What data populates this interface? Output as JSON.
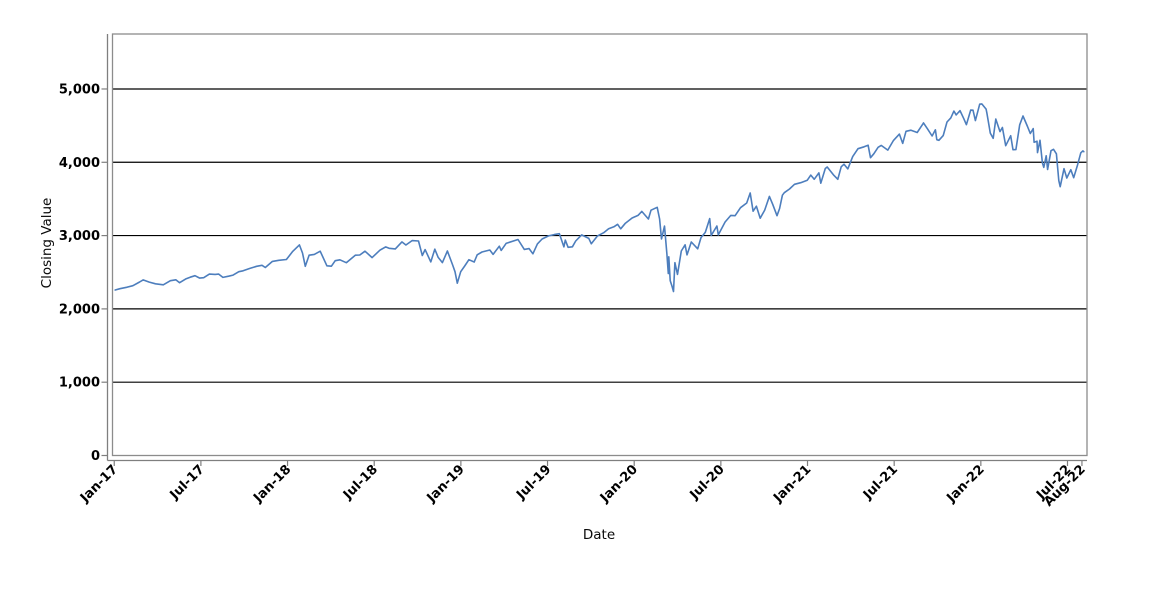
{
  "chart_data": {
    "type": "line",
    "title": "",
    "xlabel": "Date",
    "ylabel": "Closing Value",
    "grid": "horizontal-black-major",
    "legend": "none",
    "line_color": "#4d7ebd",
    "plot_border_color": "#8c8c8c",
    "axis_line_color": "#7f7f7f",
    "gridline_color": "#000000",
    "background_color": "#ffffff",
    "ylim": [
      0,
      5750
    ],
    "xlim_months": [
      -0.12,
      67.35
    ],
    "y_ticks": [
      {
        "label": "0",
        "value": 0
      },
      {
        "label": "1,000",
        "value": 1000
      },
      {
        "label": "2,000",
        "value": 2000
      },
      {
        "label": "3,000",
        "value": 3000
      },
      {
        "label": "4,000",
        "value": 4000
      },
      {
        "label": "5,000",
        "value": 5000
      }
    ],
    "x_ticks": [
      {
        "label": "Jan-17",
        "month": 0
      },
      {
        "label": "Jul-17",
        "month": 6
      },
      {
        "label": "Jan-18",
        "month": 12
      },
      {
        "label": "Jul-18",
        "month": 18
      },
      {
        "label": "Jan-19",
        "month": 24
      },
      {
        "label": "Jul-19",
        "month": 30
      },
      {
        "label": "Jan-20",
        "month": 36
      },
      {
        "label": "Jul-20",
        "month": 42
      },
      {
        "label": "Jan-21",
        "month": 48
      },
      {
        "label": "Jul-21",
        "month": 54
      },
      {
        "label": "Jan-22",
        "month": 60
      },
      {
        "label": "Jul-22",
        "month": 66
      },
      {
        "label": "Aug-22",
        "month": 67
      }
    ],
    "series": [
      {
        "name": "Closing Value",
        "points": [
          [
            "2017-01-03",
            2258
          ],
          [
            "2017-01-13",
            2275
          ],
          [
            "2017-01-27",
            2295
          ],
          [
            "2017-02-10",
            2316
          ],
          [
            "2017-02-24",
            2367
          ],
          [
            "2017-03-01",
            2396
          ],
          [
            "2017-03-14",
            2365
          ],
          [
            "2017-03-27",
            2342
          ],
          [
            "2017-04-13",
            2329
          ],
          [
            "2017-04-28",
            2384
          ],
          [
            "2017-05-09",
            2397
          ],
          [
            "2017-05-17",
            2357
          ],
          [
            "2017-05-31",
            2412
          ],
          [
            "2017-06-09",
            2432
          ],
          [
            "2017-06-19",
            2453
          ],
          [
            "2017-06-29",
            2420
          ],
          [
            "2017-07-07",
            2425
          ],
          [
            "2017-07-19",
            2474
          ],
          [
            "2017-07-31",
            2470
          ],
          [
            "2017-08-08",
            2475
          ],
          [
            "2017-08-17",
            2430
          ],
          [
            "2017-08-29",
            2446
          ],
          [
            "2017-09-08",
            2461
          ],
          [
            "2017-09-20",
            2508
          ],
          [
            "2017-09-29",
            2519
          ],
          [
            "2017-10-13",
            2553
          ],
          [
            "2017-10-27",
            2581
          ],
          [
            "2017-11-08",
            2594
          ],
          [
            "2017-11-15",
            2565
          ],
          [
            "2017-11-30",
            2648
          ],
          [
            "2017-12-13",
            2663
          ],
          [
            "2017-12-29",
            2674
          ],
          [
            "2018-01-12",
            2786
          ],
          [
            "2018-01-26",
            2873
          ],
          [
            "2018-02-02",
            2762
          ],
          [
            "2018-02-08",
            2581
          ],
          [
            "2018-02-16",
            2732
          ],
          [
            "2018-02-27",
            2744
          ],
          [
            "2018-03-09",
            2787
          ],
          [
            "2018-03-23",
            2588
          ],
          [
            "2018-04-02",
            2582
          ],
          [
            "2018-04-10",
            2657
          ],
          [
            "2018-04-20",
            2670
          ],
          [
            "2018-05-03",
            2630
          ],
          [
            "2018-05-22",
            2733
          ],
          [
            "2018-06-01",
            2735
          ],
          [
            "2018-06-12",
            2787
          ],
          [
            "2018-06-27",
            2700
          ],
          [
            "2018-07-13",
            2801
          ],
          [
            "2018-07-25",
            2846
          ],
          [
            "2018-08-02",
            2827
          ],
          [
            "2018-08-15",
            2818
          ],
          [
            "2018-08-29",
            2914
          ],
          [
            "2018-09-07",
            2872
          ],
          [
            "2018-09-20",
            2931
          ],
          [
            "2018-10-03",
            2926
          ],
          [
            "2018-10-11",
            2728
          ],
          [
            "2018-10-17",
            2809
          ],
          [
            "2018-10-29",
            2641
          ],
          [
            "2018-11-07",
            2814
          ],
          [
            "2018-11-14",
            2702
          ],
          [
            "2018-11-23",
            2632
          ],
          [
            "2018-12-03",
            2790
          ],
          [
            "2018-12-14",
            2600
          ],
          [
            "2018-12-19",
            2507
          ],
          [
            "2018-12-24",
            2351
          ],
          [
            "2018-12-31",
            2507
          ],
          [
            "2019-01-09",
            2585
          ],
          [
            "2019-01-18",
            2671
          ],
          [
            "2019-01-29",
            2640
          ],
          [
            "2019-02-05",
            2738
          ],
          [
            "2019-02-15",
            2776
          ],
          [
            "2019-03-01",
            2804
          ],
          [
            "2019-03-08",
            2743
          ],
          [
            "2019-03-21",
            2855
          ],
          [
            "2019-03-25",
            2798
          ],
          [
            "2019-04-05",
            2893
          ],
          [
            "2019-04-30",
            2946
          ],
          [
            "2019-05-13",
            2812
          ],
          [
            "2019-05-23",
            2822
          ],
          [
            "2019-05-31",
            2752
          ],
          [
            "2019-06-10",
            2887
          ],
          [
            "2019-06-20",
            2954
          ],
          [
            "2019-07-03",
            2996
          ],
          [
            "2019-07-15",
            3014
          ],
          [
            "2019-07-26",
            3026
          ],
          [
            "2019-08-05",
            2845
          ],
          [
            "2019-08-08",
            2938
          ],
          [
            "2019-08-14",
            2840
          ],
          [
            "2019-08-23",
            2847
          ],
          [
            "2019-08-30",
            2926
          ],
          [
            "2019-09-12",
            3009
          ],
          [
            "2019-09-27",
            2962
          ],
          [
            "2019-10-02",
            2888
          ],
          [
            "2019-10-15",
            2996
          ],
          [
            "2019-10-28",
            3039
          ],
          [
            "2019-11-08",
            3093
          ],
          [
            "2019-11-19",
            3120
          ],
          [
            "2019-11-27",
            3154
          ],
          [
            "2019-12-03",
            3093
          ],
          [
            "2019-12-13",
            3169
          ],
          [
            "2019-12-27",
            3240
          ],
          [
            "2020-01-09",
            3275
          ],
          [
            "2020-01-17",
            3330
          ],
          [
            "2020-01-31",
            3226
          ],
          [
            "2020-02-06",
            3346
          ],
          [
            "2020-02-19",
            3386
          ],
          [
            "2020-02-24",
            3226
          ],
          [
            "2020-02-28",
            2954
          ],
          [
            "2020-03-04",
            3130
          ],
          [
            "2020-03-09",
            2747
          ],
          [
            "2020-03-12",
            2481
          ],
          [
            "2020-03-13",
            2711
          ],
          [
            "2020-03-16",
            2386
          ],
          [
            "2020-03-20",
            2305
          ],
          [
            "2020-03-23",
            2237
          ],
          [
            "2020-03-26",
            2630
          ],
          [
            "2020-04-01",
            2471
          ],
          [
            "2020-04-09",
            2790
          ],
          [
            "2020-04-17",
            2875
          ],
          [
            "2020-04-21",
            2737
          ],
          [
            "2020-04-30",
            2912
          ],
          [
            "2020-05-13",
            2820
          ],
          [
            "2020-05-20",
            2972
          ],
          [
            "2020-05-29",
            3044
          ],
          [
            "2020-06-08",
            3232
          ],
          [
            "2020-06-11",
            3002
          ],
          [
            "2020-06-23",
            3131
          ],
          [
            "2020-06-26",
            3009
          ],
          [
            "2020-07-10",
            3185
          ],
          [
            "2020-07-22",
            3276
          ],
          [
            "2020-07-31",
            3271
          ],
          [
            "2020-08-12",
            3380
          ],
          [
            "2020-08-25",
            3444
          ],
          [
            "2020-09-02",
            3581
          ],
          [
            "2020-09-08",
            3332
          ],
          [
            "2020-09-15",
            3401
          ],
          [
            "2020-09-23",
            3237
          ],
          [
            "2020-10-02",
            3348
          ],
          [
            "2020-10-12",
            3534
          ],
          [
            "2020-10-19",
            3427
          ],
          [
            "2020-10-28",
            3271
          ],
          [
            "2020-11-03",
            3369
          ],
          [
            "2020-11-09",
            3551
          ],
          [
            "2020-11-13",
            3585
          ],
          [
            "2020-11-24",
            3635
          ],
          [
            "2020-12-04",
            3699
          ],
          [
            "2020-12-17",
            3722
          ],
          [
            "2020-12-31",
            3756
          ],
          [
            "2021-01-08",
            3825
          ],
          [
            "2021-01-15",
            3768
          ],
          [
            "2021-01-25",
            3855
          ],
          [
            "2021-01-29",
            3714
          ],
          [
            "2021-02-08",
            3915
          ],
          [
            "2021-02-12",
            3935
          ],
          [
            "2021-02-25",
            3829
          ],
          [
            "2021-03-04",
            3768
          ],
          [
            "2021-03-11",
            3939
          ],
          [
            "2021-03-17",
            3974
          ],
          [
            "2021-03-25",
            3910
          ],
          [
            "2021-04-05",
            4078
          ],
          [
            "2021-04-16",
            4185
          ],
          [
            "2021-04-29",
            4211
          ],
          [
            "2021-05-07",
            4233
          ],
          [
            "2021-05-12",
            4063
          ],
          [
            "2021-05-19",
            4116
          ],
          [
            "2021-05-28",
            4204
          ],
          [
            "2021-06-04",
            4230
          ],
          [
            "2021-06-18",
            4166
          ],
          [
            "2021-06-30",
            4298
          ],
          [
            "2021-07-12",
            4385
          ],
          [
            "2021-07-19",
            4258
          ],
          [
            "2021-07-26",
            4422
          ],
          [
            "2021-08-06",
            4437
          ],
          [
            "2021-08-19",
            4406
          ],
          [
            "2021-08-31",
            4523
          ],
          [
            "2021-09-02",
            4537
          ],
          [
            "2021-09-10",
            4459
          ],
          [
            "2021-09-20",
            4358
          ],
          [
            "2021-09-27",
            4443
          ],
          [
            "2021-09-30",
            4308
          ],
          [
            "2021-10-04",
            4300
          ],
          [
            "2021-10-13",
            4364
          ],
          [
            "2021-10-21",
            4550
          ],
          [
            "2021-10-29",
            4605
          ],
          [
            "2021-11-05",
            4698
          ],
          [
            "2021-11-10",
            4647
          ],
          [
            "2021-11-18",
            4705
          ],
          [
            "2021-11-26",
            4595
          ],
          [
            "2021-12-01",
            4513
          ],
          [
            "2021-12-10",
            4712
          ],
          [
            "2021-12-15",
            4710
          ],
          [
            "2021-12-20",
            4568
          ],
          [
            "2021-12-29",
            4793
          ],
          [
            "2022-01-03",
            4797
          ],
          [
            "2022-01-12",
            4726
          ],
          [
            "2022-01-14",
            4663
          ],
          [
            "2022-01-21",
            4398
          ],
          [
            "2022-01-27",
            4327
          ],
          [
            "2022-02-02",
            4589
          ],
          [
            "2022-02-11",
            4419
          ],
          [
            "2022-02-16",
            4475
          ],
          [
            "2022-02-23",
            4226
          ],
          [
            "2022-03-03",
            4363
          ],
          [
            "2022-03-08",
            4171
          ],
          [
            "2022-03-14",
            4173
          ],
          [
            "2022-03-22",
            4512
          ],
          [
            "2022-03-29",
            4632
          ],
          [
            "2022-04-08",
            4488
          ],
          [
            "2022-04-14",
            4393
          ],
          [
            "2022-04-20",
            4459
          ],
          [
            "2022-04-22",
            4272
          ],
          [
            "2022-04-28",
            4288
          ],
          [
            "2022-04-29",
            4132
          ],
          [
            "2022-05-04",
            4300
          ],
          [
            "2022-05-09",
            3991
          ],
          [
            "2022-05-12",
            3930
          ],
          [
            "2022-05-17",
            4089
          ],
          [
            "2022-05-20",
            3901
          ],
          [
            "2022-05-27",
            4158
          ],
          [
            "2022-06-02",
            4177
          ],
          [
            "2022-06-08",
            4116
          ],
          [
            "2022-06-13",
            3750
          ],
          [
            "2022-06-16",
            3667
          ],
          [
            "2022-06-24",
            3912
          ],
          [
            "2022-06-30",
            3785
          ],
          [
            "2022-07-08",
            3899
          ],
          [
            "2022-07-14",
            3790
          ],
          [
            "2022-07-22",
            3962
          ],
          [
            "2022-07-29",
            4130
          ],
          [
            "2022-08-03",
            4155
          ],
          [
            "2022-08-05",
            4145
          ]
        ]
      }
    ]
  }
}
